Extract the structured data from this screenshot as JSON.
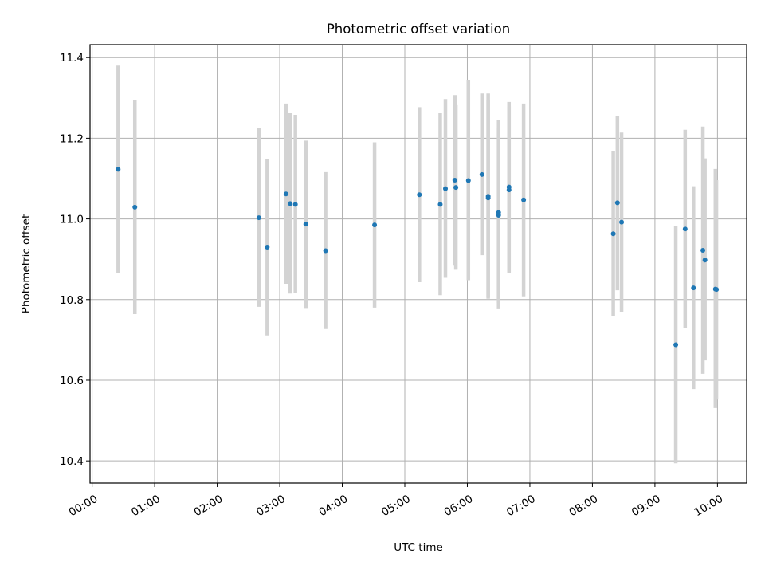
{
  "chart_data": {
    "type": "scatter",
    "title": "Photometric offset variation",
    "xlabel": "UTC time",
    "ylabel": "Photometric offset",
    "x_unit": "time of day (UTC)",
    "xlim": [
      "23:58",
      "10:28"
    ],
    "ylim": [
      10.345,
      11.432
    ],
    "x_ticks": [
      "00:00",
      "01:00",
      "02:00",
      "03:00",
      "04:00",
      "05:00",
      "06:00",
      "07:00",
      "08:00",
      "09:00",
      "10:00"
    ],
    "y_ticks": [
      "10.4",
      "10.6",
      "10.8",
      "11.0",
      "11.2",
      "11.4"
    ],
    "grid": true,
    "marker_color": "#1f77b4",
    "errorbar_color": "#d3d3d3",
    "points": [
      {
        "x": "00:25",
        "y": 11.123,
        "lo": 10.866,
        "hi": 11.38
      },
      {
        "x": "00:41",
        "y": 11.029,
        "lo": 10.764,
        "hi": 11.294
      },
      {
        "x": "02:40",
        "y": 11.003,
        "lo": 10.782,
        "hi": 11.225
      },
      {
        "x": "02:48",
        "y": 10.93,
        "lo": 10.711,
        "hi": 11.149
      },
      {
        "x": "03:06",
        "y": 11.062,
        "lo": 10.839,
        "hi": 11.286
      },
      {
        "x": "03:10",
        "y": 11.038,
        "lo": 10.815,
        "hi": 11.262
      },
      {
        "x": "03:15",
        "y": 11.036,
        "lo": 10.816,
        "hi": 11.258
      },
      {
        "x": "03:25",
        "y": 10.987,
        "lo": 10.779,
        "hi": 11.194
      },
      {
        "x": "03:44",
        "y": 10.921,
        "lo": 10.727,
        "hi": 11.116
      },
      {
        "x": "04:31",
        "y": 10.985,
        "lo": 10.78,
        "hi": 11.19
      },
      {
        "x": "05:14",
        "y": 11.06,
        "lo": 10.843,
        "hi": 11.277
      },
      {
        "x": "05:34",
        "y": 11.036,
        "lo": 10.811,
        "hi": 11.262
      },
      {
        "x": "05:39",
        "y": 11.075,
        "lo": 10.854,
        "hi": 11.297
      },
      {
        "x": "05:48",
        "y": 11.096,
        "lo": 10.884,
        "hi": 11.307
      },
      {
        "x": "05:49",
        "y": 11.078,
        "lo": 10.874,
        "hi": 11.282
      },
      {
        "x": "06:01",
        "y": 11.095,
        "lo": 10.848,
        "hi": 11.345
      },
      {
        "x": "06:14",
        "y": 11.11,
        "lo": 10.91,
        "hi": 11.311
      },
      {
        "x": "06:20",
        "y": 11.056,
        "lo": 10.802,
        "hi": 11.311
      },
      {
        "x": "06:20",
        "y": 11.052,
        "lo": 10.806,
        "hi": 11.294
      },
      {
        "x": "06:30",
        "y": 11.016,
        "lo": 10.778,
        "hi": 11.246
      },
      {
        "x": "06:30",
        "y": 11.009,
        "lo": 10.792,
        "hi": 11.226
      },
      {
        "x": "06:40",
        "y": 11.079,
        "lo": 10.868,
        "hi": 11.29
      },
      {
        "x": "06:40",
        "y": 11.072,
        "lo": 10.866,
        "hi": 11.279
      },
      {
        "x": "06:54",
        "y": 11.047,
        "lo": 10.808,
        "hi": 11.286
      },
      {
        "x": "08:20",
        "y": 10.963,
        "lo": 10.76,
        "hi": 11.168
      },
      {
        "x": "08:24",
        "y": 11.04,
        "lo": 10.823,
        "hi": 11.256
      },
      {
        "x": "08:28",
        "y": 10.992,
        "lo": 10.77,
        "hi": 11.214
      },
      {
        "x": "09:20",
        "y": 10.688,
        "lo": 10.394,
        "hi": 10.983
      },
      {
        "x": "09:29",
        "y": 10.975,
        "lo": 10.73,
        "hi": 11.221
      },
      {
        "x": "09:37",
        "y": 10.829,
        "lo": 10.578,
        "hi": 11.081
      },
      {
        "x": "09:46",
        "y": 10.922,
        "lo": 10.616,
        "hi": 11.229
      },
      {
        "x": "09:48",
        "y": 10.898,
        "lo": 10.649,
        "hi": 11.15
      },
      {
        "x": "09:58",
        "y": 10.826,
        "lo": 10.531,
        "hi": 11.124
      },
      {
        "x": "09:59",
        "y": 10.825,
        "lo": 10.552,
        "hi": 11.096
      }
    ]
  }
}
